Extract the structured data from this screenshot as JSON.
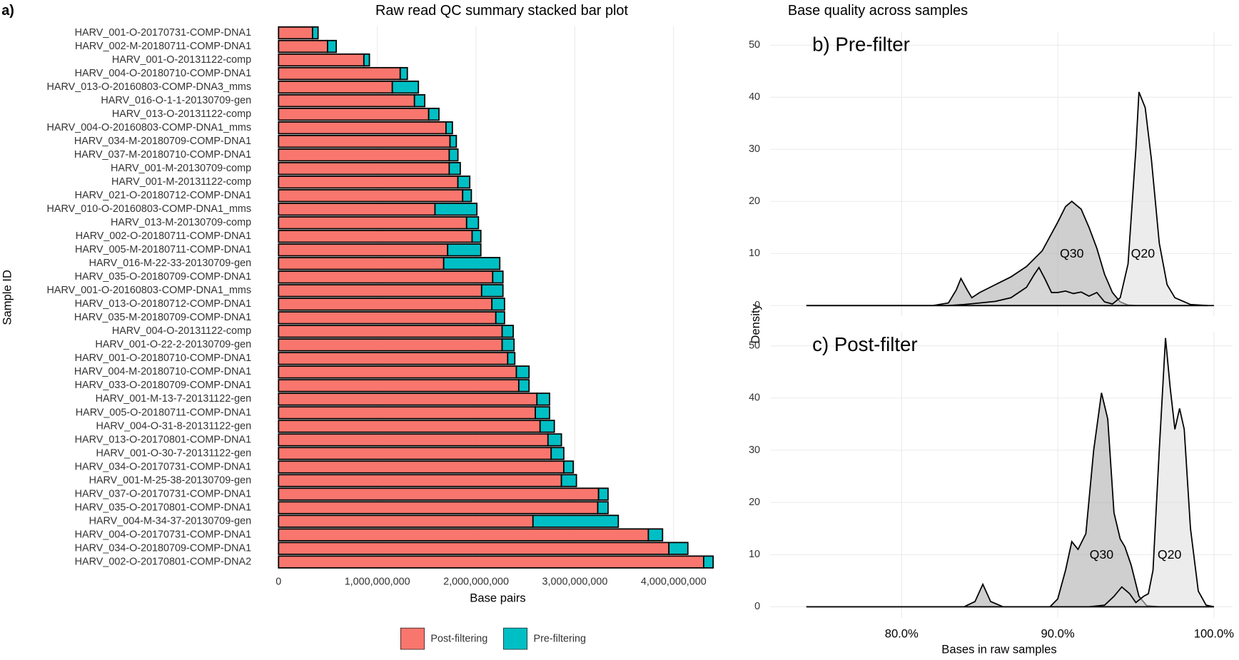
{
  "figure": {
    "label": "a)",
    "title": "Base quality across samples",
    "ylabel": "Density"
  },
  "chart_data": [
    {
      "type": "bar",
      "orientation": "horizontal",
      "stacked": true,
      "title": "Raw read QC summary stacked bar plot",
      "xlabel": "Base pairs",
      "ylabel": "Sample ID",
      "categories": [
        "HARV_001-O-20170731-COMP-DNA1",
        "HARV_002-M-20180711-COMP-DNA1",
        "HARV_001-O-20131122-comp",
        "HARV_004-O-20180710-COMP-DNA1",
        "HARV_013-O-20160803-COMP-DNA3_mms",
        "HARV_016-O-1-1-20130709-gen",
        "HARV_013-O-20131122-comp",
        "HARV_004-O-20160803-COMP-DNA1_mms",
        "HARV_034-M-20180709-COMP-DNA1",
        "HARV_037-M-20180710-COMP-DNA1",
        "HARV_001-M-20130709-comp",
        "HARV_001-M-20131122-comp",
        "HARV_021-O-20180712-COMP-DNA1",
        "HARV_010-O-20160803-COMP-DNA1_mms",
        "HARV_013-M-20130709-comp",
        "HARV_002-O-20180711-COMP-DNA1",
        "HARV_005-M-20180711-COMP-DNA1",
        "HARV_016-M-22-33-20130709-gen",
        "HARV_035-O-20180709-COMP-DNA1",
        "HARV_001-O-20160803-COMP-DNA1_mms",
        "HARV_013-O-20180712-COMP-DNA1",
        "HARV_035-M-20180709-COMP-DNA1",
        "HARV_004-O-20131122-comp",
        "HARV_001-O-22-2-20130709-gen",
        "HARV_001-O-20180710-COMP-DNA1",
        "HARV_004-M-20180710-COMP-DNA1",
        "HARV_033-O-20180709-COMP-DNA1",
        "HARV_001-M-13-7-20131122-gen",
        "HARV_005-O-20180711-COMP-DNA1",
        "HARV_004-O-31-8-20131122-gen",
        "HARV_013-O-20170801-COMP-DNA1",
        "HARV_001-O-30-7-20131122-gen",
        "HARV_034-O-20170731-COMP-DNA1",
        "HARV_001-M-25-38-20130709-gen",
        "HARV_037-O-20170731-COMP-DNA1",
        "HARV_035-O-20170801-COMP-DNA1",
        "HARV_004-M-34-37-20130709-gen",
        "HARV_004-O-20170731-COMP-DNA1",
        "HARV_034-O-20180709-COMP-DNA1",
        "HARV_002-O-20170801-COMP-DNA2"
      ],
      "series": [
        {
          "name": "Post-filtering",
          "color": "#F8766D",
          "values": [
            344000000,
            496000000,
            864000000,
            1232000000,
            1152000000,
            1376000000,
            1520000000,
            1696000000,
            1736000000,
            1728000000,
            1728000000,
            1816000000,
            1864000000,
            1584000000,
            1904000000,
            1960000000,
            1712000000,
            1672000000,
            2168000000,
            2056000000,
            2160000000,
            2200000000,
            2264000000,
            2264000000,
            2320000000,
            2408000000,
            2432000000,
            2616000000,
            2600000000,
            2648000000,
            2728000000,
            2760000000,
            2888000000,
            2864000000,
            3240000000,
            3232000000,
            2576000000,
            3744000000,
            3952000000,
            4304000000
          ]
        },
        {
          "name": "Pre-filtering",
          "color": "#00BFC4",
          "values": [
            56000000,
            88000000,
            56000000,
            72000000,
            264000000,
            104000000,
            104000000,
            64000000,
            64000000,
            88000000,
            112000000,
            120000000,
            88000000,
            424000000,
            120000000,
            88000000,
            336000000,
            568000000,
            104000000,
            216000000,
            128000000,
            88000000,
            112000000,
            120000000,
            72000000,
            128000000,
            104000000,
            128000000,
            144000000,
            144000000,
            136000000,
            128000000,
            96000000,
            152000000,
            96000000,
            104000000,
            864000000,
            144000000,
            192000000,
            96000000
          ]
        }
      ],
      "xlim": [
        -180000000,
        4620000000
      ],
      "xticks": [
        0,
        {
          "value": 1000000000,
          "label": "1,000,000,000"
        },
        {
          "value": 2000000000,
          "label": "2,000,000,000"
        },
        {
          "value": 3000000000,
          "label": "3,000,000,000"
        },
        {
          "value": 4000000000,
          "label": "4,000,000,000"
        }
      ],
      "grid": true,
      "legend": "bottom"
    },
    {
      "type": "density",
      "title": "b) Pre-filter",
      "series": [
        {
          "name": "Q30",
          "color": "#a8a8a8",
          "x": [
            73.9,
            82,
            83,
            83.5,
            83.8,
            84.2,
            84.5,
            85,
            86,
            87,
            88,
            89,
            90,
            90.5,
            90.9,
            91.5,
            92,
            92.5,
            93,
            93.5,
            94,
            94.5,
            95,
            100
          ],
          "values": [
            0,
            0,
            0.5,
            3,
            5.2,
            3,
            1.5,
            2.5,
            4,
            5.5,
            7.5,
            10.5,
            16,
            19,
            20,
            18.5,
            15,
            11,
            6,
            2.5,
            0.7,
            0.1,
            0,
            0
          ]
        },
        {
          "name": "Q20",
          "color": "#dcdcdc",
          "x": [
            73.9,
            83,
            84,
            85,
            86,
            87,
            88,
            88.5,
            88.8,
            89.2,
            89.6,
            90,
            90.5,
            91,
            91.5,
            92,
            92.5,
            93,
            93.5,
            94,
            94.5,
            95,
            95.2,
            95.6,
            96,
            96.5,
            97,
            97.5,
            98.5,
            99.6
          ],
          "values": [
            0,
            0,
            0.2,
            0.5,
            0.8,
            1.5,
            3.5,
            6,
            7.3,
            5,
            2.5,
            2.5,
            2.8,
            2.3,
            2.6,
            1.8,
            2.5,
            0.7,
            0.3,
            1.5,
            8,
            30,
            41,
            38,
            28,
            12,
            4,
            1.5,
            0.2,
            0
          ]
        }
      ],
      "xlim": [
        71.6,
        101.2
      ],
      "ylim": [
        -2,
        52.6
      ],
      "yticks": [
        0,
        10,
        20,
        30,
        40,
        50
      ],
      "grid": true
    },
    {
      "type": "density",
      "title": "c) Post-filter",
      "xlabel": "Bases in raw samples",
      "series": [
        {
          "name": "Q30",
          "color": "#a8a8a8",
          "x": [
            73.9,
            84,
            84.7,
            85.2,
            85.7,
            86.5,
            89.5,
            90,
            90.5,
            90.9,
            91.3,
            91.8,
            92.3,
            92.8,
            93.2,
            93.6,
            94,
            94.3,
            94.7,
            95.2,
            95.7,
            96.5,
            100
          ],
          "values": [
            0,
            0,
            1,
            4.3,
            1,
            0,
            0,
            1.5,
            7,
            12.5,
            11,
            14,
            30,
            41,
            36,
            18,
            13,
            11.5,
            8,
            2,
            0.2,
            0,
            0
          ]
        },
        {
          "name": "Q20",
          "color": "#dcdcdc",
          "x": [
            73.9,
            92,
            93,
            93.6,
            94.1,
            94.6,
            95,
            95.5,
            95.8,
            96.1,
            96.5,
            96.9,
            97.2,
            97.5,
            97.8,
            98.1,
            98.5,
            99,
            99.5,
            100
          ],
          "values": [
            0,
            0,
            0.3,
            2,
            3.8,
            2.5,
            0.8,
            2,
            2.5,
            7,
            30,
            51.5,
            42,
            34,
            38,
            34,
            15,
            3,
            0.3,
            0
          ]
        }
      ],
      "xlim": [
        71.6,
        101.2
      ],
      "ylim": [
        -2.1,
        52.7
      ],
      "yticks": [
        0,
        10,
        20,
        30,
        40,
        50
      ],
      "xticks": [
        {
          "value": 80,
          "label": "80.0%"
        },
        {
          "value": 90,
          "label": "90.0%"
        },
        {
          "value": 100,
          "label": "100.0%"
        }
      ],
      "grid": true
    }
  ]
}
